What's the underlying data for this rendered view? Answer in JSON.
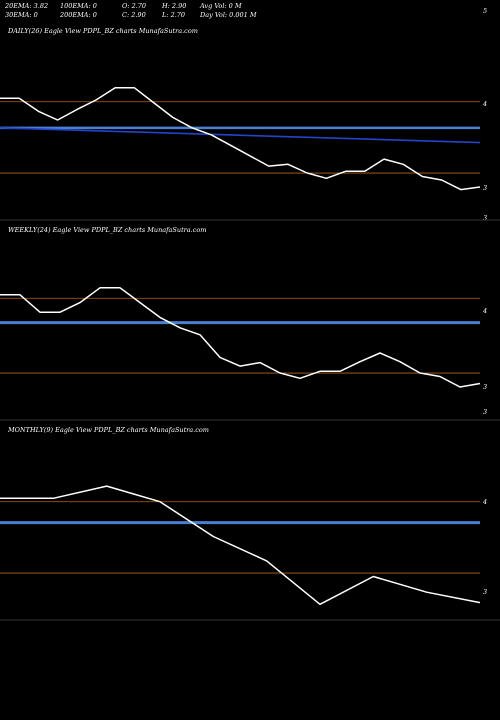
{
  "header": {
    "row1": [
      {
        "label": "20EMA: 3.82"
      },
      {
        "label": "100EMA: 0"
      },
      {
        "label": "O: 2.70"
      },
      {
        "label": "H: 2.90"
      },
      {
        "label": "Avg Vol: 0  M"
      }
    ],
    "row2": [
      {
        "label": "30EMA: 0"
      },
      {
        "label": "200EMA: 0"
      },
      {
        "label": "C: 2.90"
      },
      {
        "label": "L: 2.70"
      },
      {
        "label": "Day Vol: 0.001 M"
      }
    ],
    "corner_tick": "5"
  },
  "colors": {
    "background": "#000000",
    "price_line": "#ffffff",
    "grid_line": "#b5651d",
    "ema_line": "#2244cc",
    "level_line": "#4a7fd4"
  },
  "chart_data": [
    {
      "type": "line",
      "title": "DAILY(26) Eagle  View  PDPL_BZ charts MunafaSutra.com",
      "ytick_labels": [
        "4",
        "3",
        "3"
      ],
      "y_end_label": "3",
      "series": [
        {
          "values": [
            4.0,
            4.0,
            3.85,
            3.75,
            3.87,
            3.98,
            4.12,
            4.12,
            3.95,
            3.78,
            3.66,
            3.58,
            3.46,
            3.34,
            3.22,
            3.24,
            3.14,
            3.08,
            3.16,
            3.16,
            3.3,
            3.24,
            3.1,
            3.06,
            2.95,
            2.98
          ]
        }
      ],
      "ema": [
        3.66,
        3.49
      ],
      "gridlines": [
        3.96,
        3.14
      ]
    },
    {
      "type": "line",
      "title": "WEEKLY(24) Eagle  View  PDPL_BZ charts MunafaSutra.com",
      "ytick_labels": [
        "4",
        "3",
        "3"
      ],
      "series": [
        {
          "values": [
            4.04,
            4.04,
            3.84,
            3.84,
            3.95,
            4.12,
            4.12,
            3.95,
            3.78,
            3.66,
            3.58,
            3.32,
            3.22,
            3.26,
            3.14,
            3.08,
            3.16,
            3.16,
            3.27,
            3.37,
            3.27,
            3.14,
            3.1,
            2.98,
            3.02
          ]
        }
      ],
      "level": [
        3.72
      ],
      "gridlines": [
        4.0,
        3.14
      ]
    },
    {
      "type": "line",
      "title": "MONTHLY(9) Eagle  View  PDPL_BZ charts MunafaSutra.com",
      "ytick_labels": [
        "4",
        "3"
      ],
      "series": [
        {
          "values": [
            4.0,
            4.0,
            4.14,
            3.96,
            3.56,
            3.28,
            2.78,
            3.1,
            2.92,
            2.8
          ]
        }
      ],
      "level": [
        3.72
      ],
      "gridlines": [
        3.96,
        3.14
      ]
    }
  ]
}
